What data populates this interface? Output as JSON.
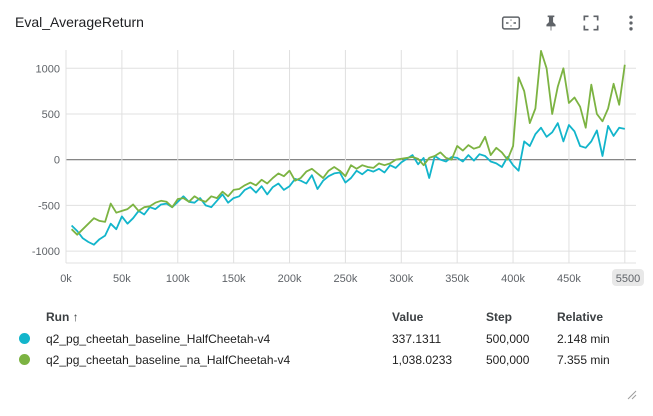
{
  "card": {
    "title": "Eval_AverageReturn"
  },
  "toolbar": {
    "icons": [
      "fit-domain-icon",
      "pin-icon",
      "fullscreen-icon",
      "more-vert-icon"
    ]
  },
  "chart_data": {
    "type": "line",
    "title": "",
    "xlabel": "",
    "ylabel": "",
    "xlim": [
      0,
      510000
    ],
    "ylim": [
      -1130,
      1200
    ],
    "x_ticks": [
      "0k",
      "50k",
      "100k",
      "150k",
      "200k",
      "250k",
      "300k",
      "350k",
      "400k",
      "450k",
      "500k",
      "5500"
    ],
    "y_ticks": [
      "1000",
      "500",
      "0",
      "-500",
      "-1000"
    ],
    "grid": true,
    "series": [
      {
        "name": "q2_pg_cheetah_baseline_HalfCheetah-v4",
        "color": "#12b5cb",
        "x": [
          5000,
          10000,
          15000,
          20000,
          25000,
          30000,
          35000,
          40000,
          45000,
          50000,
          55000,
          60000,
          65000,
          70000,
          75000,
          80000,
          85000,
          90000,
          95000,
          100000,
          105000,
          110000,
          115000,
          120000,
          125000,
          130000,
          135000,
          140000,
          145000,
          150000,
          155000,
          160000,
          165000,
          170000,
          175000,
          180000,
          185000,
          190000,
          195000,
          200000,
          205000,
          210000,
          215000,
          220000,
          225000,
          230000,
          235000,
          240000,
          245000,
          250000,
          255000,
          260000,
          265000,
          270000,
          275000,
          280000,
          285000,
          290000,
          295000,
          300000,
          305000,
          310000,
          315000,
          320000,
          325000,
          330000,
          335000,
          340000,
          345000,
          350000,
          355000,
          360000,
          365000,
          370000,
          375000,
          380000,
          385000,
          390000,
          395000,
          400000,
          405000,
          410000,
          415000,
          420000,
          425000,
          430000,
          435000,
          440000,
          445000,
          450000,
          455000,
          460000,
          465000,
          470000,
          475000,
          480000,
          485000,
          490000,
          495000,
          500000
        ],
        "y": [
          -720,
          -780,
          -860,
          -900,
          -930,
          -870,
          -830,
          -700,
          -760,
          -620,
          -700,
          -640,
          -560,
          -600,
          -520,
          -540,
          -490,
          -480,
          -520,
          -460,
          -400,
          -460,
          -470,
          -420,
          -500,
          -520,
          -450,
          -380,
          -470,
          -420,
          -400,
          -330,
          -300,
          -360,
          -290,
          -380,
          -300,
          -260,
          -330,
          -290,
          -210,
          -230,
          -260,
          -170,
          -320,
          -230,
          -180,
          -150,
          -140,
          -250,
          -200,
          -120,
          -160,
          -110,
          -130,
          -100,
          -140,
          -60,
          -90,
          -30,
          10,
          50,
          -50,
          20,
          -200,
          40,
          0,
          -20,
          30,
          20,
          -20,
          50,
          -10,
          60,
          40,
          -20,
          -40,
          -80,
          30,
          -60,
          -120,
          200,
          150,
          280,
          350,
          250,
          300,
          400,
          200,
          380,
          310,
          150,
          130,
          200,
          320,
          40,
          370,
          260,
          350,
          337
        ]
      },
      {
        "name": "q2_pg_cheetah_baseline_na_HalfCheetah-v4",
        "color": "#7cb342",
        "x": [
          5000,
          10000,
          15000,
          20000,
          25000,
          30000,
          35000,
          40000,
          45000,
          50000,
          55000,
          60000,
          65000,
          70000,
          75000,
          80000,
          85000,
          90000,
          95000,
          100000,
          105000,
          110000,
          115000,
          120000,
          125000,
          130000,
          135000,
          140000,
          145000,
          150000,
          155000,
          160000,
          165000,
          170000,
          175000,
          180000,
          185000,
          190000,
          195000,
          200000,
          205000,
          210000,
          215000,
          220000,
          225000,
          230000,
          235000,
          240000,
          245000,
          250000,
          255000,
          260000,
          265000,
          270000,
          275000,
          280000,
          285000,
          290000,
          295000,
          300000,
          305000,
          310000,
          315000,
          320000,
          325000,
          330000,
          335000,
          340000,
          345000,
          350000,
          355000,
          360000,
          365000,
          370000,
          375000,
          380000,
          385000,
          390000,
          395000,
          400000,
          405000,
          410000,
          415000,
          420000,
          425000,
          430000,
          435000,
          440000,
          445000,
          450000,
          455000,
          460000,
          465000,
          470000,
          475000,
          480000,
          485000,
          490000,
          495000,
          500000
        ],
        "y": [
          -760,
          -820,
          -760,
          -700,
          -640,
          -670,
          -680,
          -480,
          -580,
          -560,
          -540,
          -490,
          -560,
          -520,
          -510,
          -470,
          -450,
          -460,
          -520,
          -430,
          -420,
          -460,
          -400,
          -440,
          -460,
          -400,
          -420,
          -350,
          -400,
          -330,
          -320,
          -280,
          -250,
          -280,
          -220,
          -260,
          -200,
          -150,
          -180,
          -120,
          -230,
          -200,
          -130,
          -100,
          -150,
          -200,
          -120,
          -80,
          -120,
          -180,
          -60,
          -100,
          -60,
          -80,
          -90,
          -40,
          -60,
          -40,
          0,
          10,
          20,
          30,
          10,
          -60,
          20,
          40,
          80,
          20,
          0,
          150,
          100,
          160,
          120,
          140,
          250,
          50,
          130,
          80,
          0,
          150,
          900,
          750,
          400,
          560,
          1190,
          1000,
          500,
          800,
          1000,
          620,
          680,
          580,
          350,
          820,
          500,
          420,
          560,
          830,
          600,
          1038
        ]
      }
    ]
  },
  "table": {
    "headers": {
      "run": "Run ↑",
      "value": "Value",
      "step": "Step",
      "relative": "Relative"
    },
    "rows": [
      {
        "color": "#12b5cb",
        "run": "q2_pg_cheetah_baseline_HalfCheetah-v4",
        "value": "337.1311",
        "step": "500,000",
        "relative": "2.148 min"
      },
      {
        "color": "#7cb342",
        "run": "q2_pg_cheetah_baseline_na_HalfCheetah-v4",
        "value": "1,038.0233",
        "step": "500,000",
        "relative": "7.355 min"
      }
    ]
  }
}
